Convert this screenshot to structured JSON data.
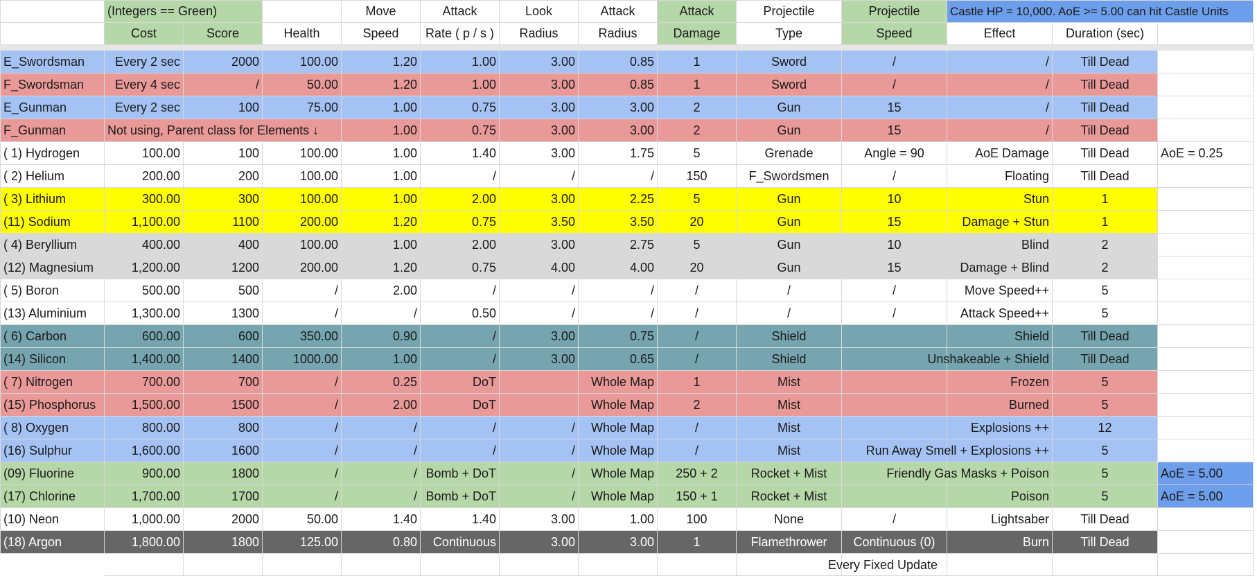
{
  "header_row1": {
    "cost_score_group": "(Integers == Green)",
    "move": "Move",
    "attack_rate": "Attack",
    "look": "Look",
    "attack_radius": "Attack",
    "attack_damage": "Attack",
    "projectile_type": "Projectile",
    "projectile_speed": "Projectile",
    "castle_note": "Castle HP = 10,000. AoE >= 5.00 can hit Castle Units"
  },
  "header_row2": {
    "cost": "Cost",
    "score": "Score",
    "health": "Health",
    "speed": "Speed",
    "rate": "Rate ( p / s )",
    "look_radius": "Radius",
    "attack_radius": "Radius",
    "damage": "Damage",
    "type": "Type",
    "proj_speed": "Speed",
    "effect": "Effect",
    "duration": "Duration (sec)"
  },
  "rows": [
    {
      "name": "E_Swordsman",
      "cost": "Every 2 sec",
      "score": "2000",
      "health": "100.00",
      "speed": "1.20",
      "rate": "1.00",
      "look": "3.00",
      "radius": "0.85",
      "damage": "1",
      "type": "Sword",
      "pspeed": "/",
      "effect": "/",
      "duration": "Till Dead",
      "extra": ""
    },
    {
      "name": "F_Swordsman",
      "cost": "Every 4 sec",
      "score": "/",
      "health": "50.00",
      "speed": "1.20",
      "rate": "1.00",
      "look": "3.00",
      "radius": "0.85",
      "damage": "1",
      "type": "Sword",
      "pspeed": "/",
      "effect": "/",
      "duration": "Till Dead",
      "extra": ""
    },
    {
      "name": "E_Gunman",
      "cost": "Every 2 sec",
      "score": "100",
      "health": "75.00",
      "speed": "1.00",
      "rate": "0.75",
      "look": "3.00",
      "radius": "3.00",
      "damage": "2",
      "type": "Gun",
      "pspeed": "15",
      "effect": "/",
      "duration": "Till Dead",
      "extra": ""
    },
    {
      "name": "F_Gunman",
      "cost": "Not using, Parent class for Elements ↓",
      "score": "",
      "health": "",
      "speed": "1.00",
      "rate": "0.75",
      "look": "3.00",
      "radius": "3.00",
      "damage": "2",
      "type": "Gun",
      "pspeed": "15",
      "effect": "/",
      "duration": "Till Dead",
      "extra": ""
    },
    {
      "name": "( 1) Hydrogen",
      "cost": "100.00",
      "score": "100",
      "health": "100.00",
      "speed": "1.00",
      "rate": "1.40",
      "look": "3.00",
      "radius": "1.75",
      "damage": "5",
      "type": "Grenade",
      "pspeed": "Angle = 90",
      "effect": "AoE Damage",
      "duration": "Till Dead",
      "extra": "AoE = 0.25"
    },
    {
      "name": "( 2) Helium",
      "cost": "200.00",
      "score": "200",
      "health": "100.00",
      "speed": "1.00",
      "rate": "/",
      "look": "/",
      "radius": "/",
      "damage": "150",
      "type": "F_Swordsmen",
      "pspeed": "/",
      "effect": "Floating",
      "duration": "Till Dead",
      "extra": ""
    },
    {
      "name": "( 3) Lithium",
      "cost": "300.00",
      "score": "300",
      "health": "100.00",
      "speed": "1.00",
      "rate": "2.00",
      "look": "3.00",
      "radius": "2.25",
      "damage": "5",
      "type": "Gun",
      "pspeed": "10",
      "effect": "Stun",
      "duration": "1",
      "extra": ""
    },
    {
      "name": "(11) Sodium",
      "cost": "1,100.00",
      "score": "1100",
      "health": "200.00",
      "speed": "1.20",
      "rate": "0.75",
      "look": "3.50",
      "radius": "3.50",
      "damage": "20",
      "type": "Gun",
      "pspeed": "15",
      "effect": "Damage + Stun",
      "duration": "1",
      "extra": ""
    },
    {
      "name": "( 4) Beryllium",
      "cost": "400.00",
      "score": "400",
      "health": "100.00",
      "speed": "1.00",
      "rate": "2.00",
      "look": "3.00",
      "radius": "2.75",
      "damage": "5",
      "type": "Gun",
      "pspeed": "10",
      "effect": "Blind",
      "duration": "2",
      "extra": ""
    },
    {
      "name": "(12) Magnesium",
      "cost": "1,200.00",
      "score": "1200",
      "health": "200.00",
      "speed": "1.20",
      "rate": "0.75",
      "look": "4.00",
      "radius": "4.00",
      "damage": "20",
      "type": "Gun",
      "pspeed": "15",
      "effect": "Damage + Blind",
      "duration": "2",
      "extra": ""
    },
    {
      "name": "( 5) Boron",
      "cost": "500.00",
      "score": "500",
      "health": "/",
      "speed": "2.00",
      "rate": "/",
      "look": "/",
      "radius": "/",
      "damage": "/",
      "type": "/",
      "pspeed": "/",
      "effect": "Move Speed++",
      "duration": "5",
      "extra": ""
    },
    {
      "name": "(13) Aluminium",
      "cost": "1,300.00",
      "score": "1300",
      "health": "/",
      "speed": "/",
      "rate": "0.50",
      "look": "/",
      "radius": "/",
      "damage": "/",
      "type": "/",
      "pspeed": "/",
      "effect": "Attack Speed++",
      "duration": "5",
      "extra": ""
    },
    {
      "name": "( 6) Carbon",
      "cost": "600.00",
      "score": "600",
      "health": "350.00",
      "speed": "0.90",
      "rate": "/",
      "look": "3.00",
      "radius": "0.75",
      "damage": "/",
      "type": "Shield",
      "pspeed": "",
      "effect": "Shield",
      "duration": "Till Dead",
      "extra": ""
    },
    {
      "name": "(14) Silicon",
      "cost": "1,400.00",
      "score": "1400",
      "health": "1000.00",
      "speed": "1.00",
      "rate": "/",
      "look": "3.00",
      "radius": "0.65",
      "damage": "/",
      "type": "Shield",
      "pspeed": "",
      "effect": "Unshakeable + Shield",
      "duration": "Till Dead",
      "extra": ""
    },
    {
      "name": "( 7) Nitrogen",
      "cost": "700.00",
      "score": "700",
      "health": "/",
      "speed": "0.25",
      "rate": "DoT",
      "look": "",
      "radius": "Whole Map",
      "damage": "1",
      "type": "Mist",
      "pspeed": "",
      "effect": "Frozen",
      "duration": "5",
      "extra": ""
    },
    {
      "name": "(15) Phosphorus",
      "cost": "1,500.00",
      "score": "1500",
      "health": "/",
      "speed": "2.00",
      "rate": "DoT",
      "look": "",
      "radius": "Whole Map",
      "damage": "2",
      "type": "Mist",
      "pspeed": "",
      "effect": "Burned",
      "duration": "5",
      "extra": ""
    },
    {
      "name": "( 8) Oxygen",
      "cost": "800.00",
      "score": "800",
      "health": "/",
      "speed": "/",
      "rate": "/",
      "look": "/",
      "radius": "Whole Map",
      "damage": "/",
      "type": "Mist",
      "pspeed": "",
      "effect": "Explosions ++",
      "duration": "12",
      "extra": ""
    },
    {
      "name": "(16) Sulphur",
      "cost": "1,600.00",
      "score": "1600",
      "health": "/",
      "speed": "/",
      "rate": "/",
      "look": "/",
      "radius": "Whole Map",
      "damage": "/",
      "type": "Mist",
      "pspeed": "",
      "effect": "Run Away Smell + Explosions ++",
      "duration": "5",
      "extra": ""
    },
    {
      "name": "(09) Fluorine",
      "cost": "900.00",
      "score": "1800",
      "health": "/",
      "speed": "/",
      "rate": "Bomb + DoT",
      "look": "/",
      "radius": "Whole Map",
      "damage": "250 + 2",
      "type": "Rocket + Mist",
      "pspeed": "",
      "effect": "Friendly Gas Masks + Poison",
      "duration": "5",
      "extra": "AoE = 5.00"
    },
    {
      "name": "(17) Chlorine",
      "cost": "1,700.00",
      "score": "1700",
      "health": "/",
      "speed": "/",
      "rate": "Bomb + DoT",
      "look": "/",
      "radius": "Whole Map",
      "damage": "150 + 1",
      "type": "Rocket + Mist",
      "pspeed": "",
      "effect": "Poison",
      "duration": "5",
      "extra": "AoE = 5.00"
    },
    {
      "name": "(10) Neon",
      "cost": "1,000.00",
      "score": "2000",
      "health": "50.00",
      "speed": "1.40",
      "rate": "1.40",
      "look": "3.00",
      "radius": "1.00",
      "damage": "100",
      "type": "None",
      "pspeed": "/",
      "effect": "Lightsaber",
      "duration": "Till Dead",
      "extra": ""
    },
    {
      "name": "(18) Argon",
      "cost": "1,800.00",
      "score": "1800",
      "health": "125.00",
      "speed": "0.80",
      "rate": "Continuous",
      "look": "3.00",
      "radius": "3.00",
      "damage": "1",
      "type": "Flamethrower",
      "pspeed": "Continuous (0)",
      "effect": "Burn",
      "duration": "Till Dead",
      "extra": ""
    }
  ],
  "footer_note": "Every Fixed Update",
  "colors": {
    "green_header": "#b6d7a8",
    "blue_header": "#6d9eeb",
    "blue_row": "#a4c2f4",
    "red_row": "#ea9999",
    "yellow_row": "#ffff00",
    "grey_row": "#d9d9d9",
    "teal_row": "#76a5af",
    "green_row": "#b6d7a8",
    "dark_row": "#666666"
  }
}
